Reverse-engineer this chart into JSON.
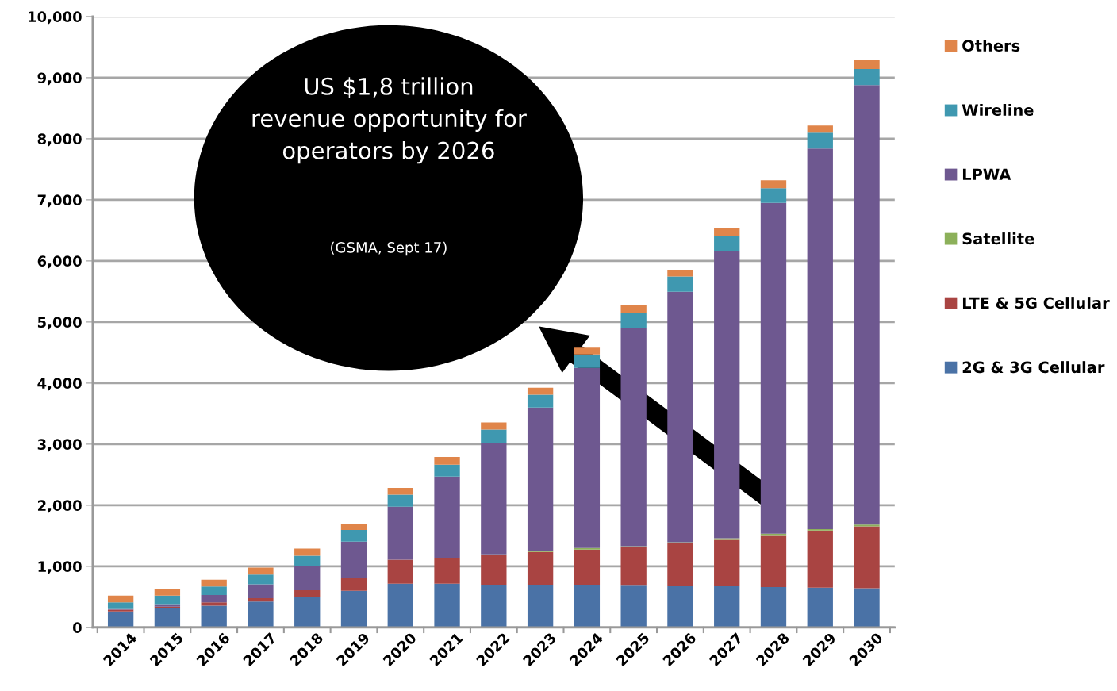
{
  "chart_data": {
    "type": "bar",
    "stacked": true,
    "categories": [
      "2014",
      "2015",
      "2016",
      "2017",
      "2018",
      "2019",
      "2020",
      "2021",
      "2022",
      "2023",
      "2024",
      "2025",
      "2026",
      "2027",
      "2028",
      "2029",
      "2030"
    ],
    "series": [
      {
        "name": "2G & 3G Cellular",
        "color": "#4a72a6",
        "values": [
          260,
          310,
          355,
          425,
          505,
          600,
          715,
          715,
          700,
          700,
          690,
          685,
          675,
          675,
          660,
          650,
          640
        ]
      },
      {
        "name": "LTE & 5G Cellular",
        "color": "#a94442",
        "values": [
          30,
          30,
          55,
          55,
          105,
          210,
          395,
          425,
          485,
          535,
          585,
          625,
          700,
          760,
          850,
          935,
          1015
        ]
      },
      {
        "name": "Satellite",
        "color": "#8cb05a",
        "values": [
          0,
          0,
          0,
          0,
          0,
          0,
          0,
          0,
          10,
          15,
          25,
          20,
          20,
          25,
          25,
          25,
          30
        ]
      },
      {
        "name": "LPWA",
        "color": "#6e5890",
        "values": [
          10,
          40,
          120,
          225,
          395,
          595,
          865,
          1330,
          1830,
          2350,
          2950,
          3575,
          4100,
          4700,
          5415,
          6230,
          7195
        ]
      },
      {
        "name": "Wireline",
        "color": "#3f98b0",
        "values": [
          110,
          140,
          140,
          160,
          170,
          190,
          200,
          195,
          215,
          210,
          220,
          235,
          250,
          250,
          240,
          260,
          260
        ]
      },
      {
        "name": "Others",
        "color": "#e0854a",
        "values": [
          110,
          105,
          110,
          115,
          115,
          105,
          110,
          125,
          115,
          115,
          110,
          130,
          110,
          135,
          130,
          115,
          145
        ]
      }
    ],
    "ylim": [
      0,
      10000
    ],
    "yticks": [
      0,
      {
        "value": 1000,
        "label": "1,000"
      },
      {
        "value": 2000,
        "label": "2,000"
      },
      {
        "value": 3000,
        "label": "3,000"
      },
      {
        "value": 4000,
        "label": "4,000"
      },
      {
        "value": 5000,
        "label": "5,000"
      },
      {
        "value": 6000,
        "label": "6,000"
      },
      {
        "value": 7000,
        "label": "7,000"
      },
      {
        "value": 8000,
        "label": "8,000"
      },
      {
        "value": 9000,
        "label": "9,000"
      },
      {
        "value": 10000,
        "label": "10,000"
      }
    ],
    "grid": "y",
    "legend": "right",
    "annotations": [
      "US $1,8 trillion\nrevenue opportunity for\noperators by 2026",
      "(GSMA, Sept 17)"
    ]
  }
}
